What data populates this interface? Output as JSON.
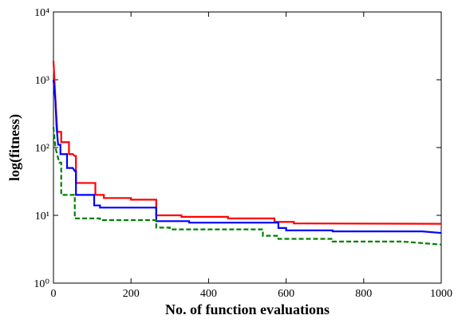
{
  "chart_data": {
    "type": "line",
    "xlabel": "No. of function evaluations",
    "ylabel": "log(fitness)",
    "yscale": "log",
    "xlim": [
      0,
      1000
    ],
    "xticks": [
      0,
      200,
      400,
      600,
      800,
      1000
    ],
    "ylim": [
      1,
      10000
    ],
    "yticks": [
      {
        "value": 1,
        "label": "10⁰"
      },
      {
        "value": 10,
        "label": "10¹"
      },
      {
        "value": 100,
        "label": "10²"
      },
      {
        "value": 1000,
        "label": "10³"
      },
      {
        "value": 10000,
        "label": "10⁴"
      }
    ],
    "series": [
      {
        "color": "#ff0000",
        "dash": false,
        "x": [
          0,
          3,
          6,
          10,
          20,
          20,
          40,
          40,
          50,
          55,
          58,
          58,
          108,
          108,
          130,
          130,
          200,
          200,
          265,
          265,
          330,
          330,
          450,
          450,
          570,
          570,
          620,
          620,
          1000
        ],
        "values": [
          1900,
          900,
          400,
          170,
          170,
          120,
          120,
          80,
          80,
          75,
          75,
          30,
          30,
          20,
          20,
          18,
          18,
          17,
          17,
          10,
          10,
          9.5,
          9.5,
          9,
          9,
          8,
          8,
          7.6,
          7.5
        ]
      },
      {
        "color": "#0000ff",
        "dash": false,
        "x": [
          0,
          5,
          8,
          12,
          18,
          18,
          35,
          35,
          50,
          55,
          58,
          58,
          105,
          105,
          120,
          120,
          265,
          265,
          350,
          350,
          580,
          580,
          600,
          600,
          720,
          720,
          950,
          1000
        ],
        "values": [
          1000,
          500,
          200,
          110,
          110,
          80,
          80,
          50,
          50,
          45,
          45,
          20,
          20,
          14,
          14,
          13,
          13,
          8.2,
          8.2,
          7.8,
          7.8,
          6.5,
          6.5,
          6,
          6,
          5.8,
          5.8,
          5.5
        ]
      },
      {
        "color": "#008000",
        "dash": true,
        "x": [
          0,
          5,
          15,
          20,
          20,
          55,
          55,
          120,
          120,
          265,
          265,
          300,
          300,
          540,
          540,
          580,
          580,
          720,
          720,
          900,
          1000
        ],
        "values": [
          200,
          100,
          60,
          60,
          20,
          20,
          9,
          9,
          8.5,
          8.5,
          6.6,
          6.6,
          6.2,
          6.2,
          5,
          5,
          4.5,
          4.5,
          4.1,
          4.1,
          3.7
        ]
      }
    ]
  }
}
